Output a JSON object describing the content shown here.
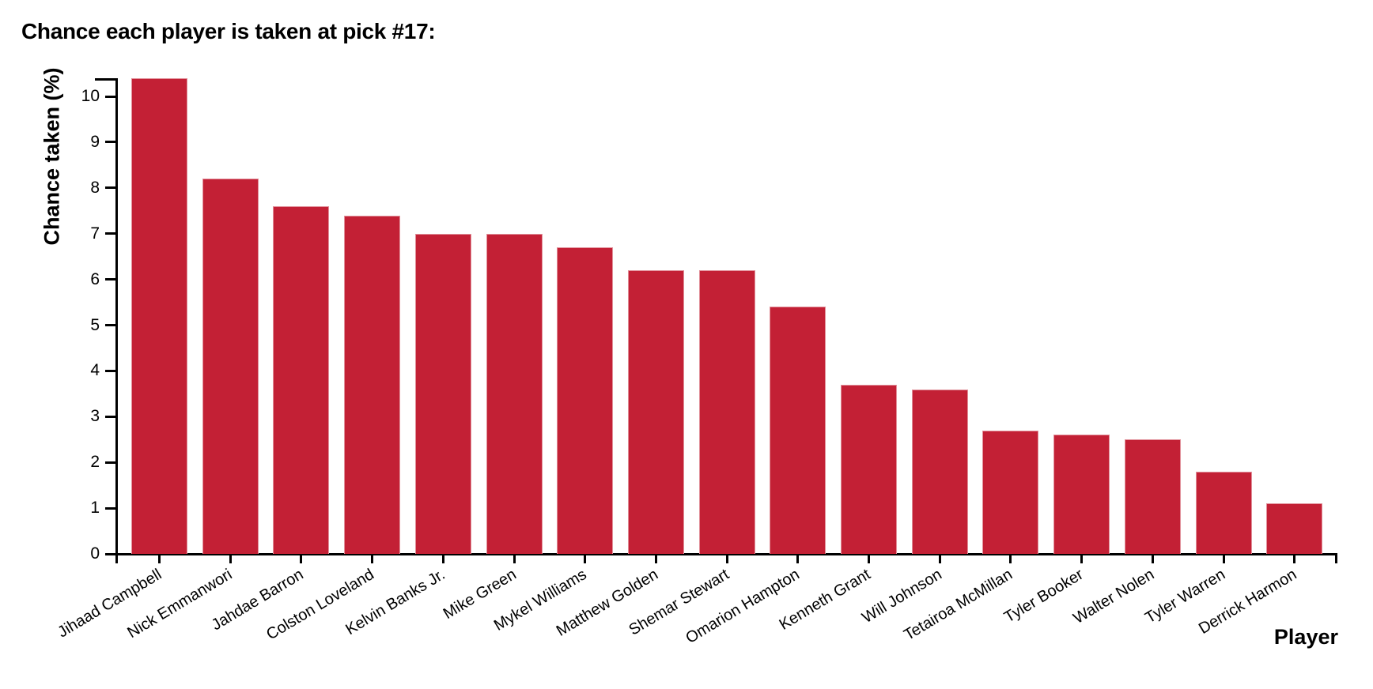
{
  "title": "Chance each player is taken at pick #17:",
  "chart_data": {
    "type": "bar",
    "title": "Chance each player is taken at pick #17:",
    "xlabel": "Player",
    "ylabel": "Chance taken (%)",
    "ylim": [
      0,
      10.4
    ],
    "yticks": [
      0,
      1,
      2,
      3,
      4,
      5,
      6,
      7,
      8,
      9,
      10
    ],
    "grid": false,
    "legend_position": "none",
    "bar_color": "#c32035",
    "categories": [
      "Jihaad Campbell",
      "Nick Emmanwori",
      "Jahdae Barron",
      "Colston Loveland",
      "Kelvin Banks Jr.",
      "Mike Green",
      "Mykel Williams",
      "Matthew Golden",
      "Shemar Stewart",
      "Omarion Hampton",
      "Kenneth Grant",
      "Will Johnson",
      "Tetairoa McMillan",
      "Tyler Booker",
      "Walter Nolen",
      "Tyler Warren",
      "Derrick Harmon"
    ],
    "values": [
      10.4,
      8.2,
      7.6,
      7.4,
      7.0,
      7.0,
      6.7,
      6.2,
      6.2,
      5.4,
      3.7,
      3.6,
      2.7,
      2.6,
      2.5,
      1.8,
      1.1
    ]
  },
  "colors": {
    "bar": "#c32035",
    "bar_edge": "rgba(255,255,255,0.5)",
    "axis": "#000000",
    "text": "#000000",
    "background": "#ffffff"
  }
}
